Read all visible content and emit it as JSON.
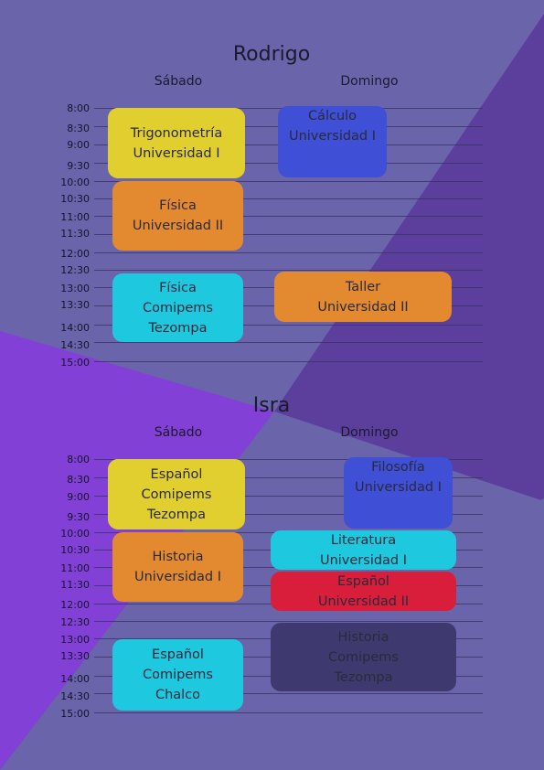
{
  "sections": [
    {
      "name": "Rodrigo",
      "days": [
        "Sábado",
        "Domingo"
      ],
      "times": [
        "8:00",
        "8:30",
        "9:00",
        "9:30",
        "10:00",
        "10:30",
        "11:00",
        "11:30",
        "12:00",
        "12:30",
        "13:00",
        "13:30",
        "14:00",
        "14:30",
        "15:00"
      ],
      "classes": [
        {
          "subject": "Trigonometría",
          "place": "Universidad I",
          "day": "Sábado"
        },
        {
          "subject": "Física",
          "place": "Universidad II",
          "day": "Sábado"
        },
        {
          "subject": "Física",
          "place": "Comipems",
          "place2": "Tezompa",
          "day": "Sábado"
        },
        {
          "subject": "Cálculo",
          "place": "Universidad I",
          "day": "Domingo"
        },
        {
          "subject": "Taller",
          "place": "Universidad II",
          "day": "Domingo"
        }
      ]
    },
    {
      "name": "Isra",
      "days": [
        "Sábado",
        "Domingo"
      ],
      "times": [
        "8:00",
        "8:30",
        "9:00",
        "9:30",
        "10:00",
        "10:30",
        "11:00",
        "11:30",
        "12:00",
        "12:30",
        "13:00",
        "13:30",
        "14:00",
        "14:30",
        "15:00"
      ],
      "classes": [
        {
          "subject": "Español",
          "place": "Comipems",
          "place2": "Tezompa",
          "day": "Sábado"
        },
        {
          "subject": "Historia",
          "place": "Universidad I",
          "day": "Sábado"
        },
        {
          "subject": "Español",
          "place": "Comipems",
          "place2": "Chalco",
          "day": "Sábado"
        },
        {
          "subject": "Filosofía",
          "place": "Universidad I",
          "day": "Domingo"
        },
        {
          "subject": "Literatura",
          "place": "Universidad I",
          "day": "Domingo"
        },
        {
          "subject": "Español",
          "place": "Universidad II",
          "day": "Domingo"
        },
        {
          "subject": "Historia",
          "place": "Comipems",
          "place2": "Tezompa",
          "day": "Domingo"
        }
      ]
    }
  ],
  "colors": {
    "background": "#6a65ab",
    "dark_band": "#5c3f9c",
    "violet_band": "#8340d6",
    "yellow": "#e0cf2e",
    "orange": "#e38a30",
    "cyan": "#1ec9e0",
    "blue": "#3f4fd6",
    "red": "#d81e3a",
    "navy": "#3e3a70"
  }
}
